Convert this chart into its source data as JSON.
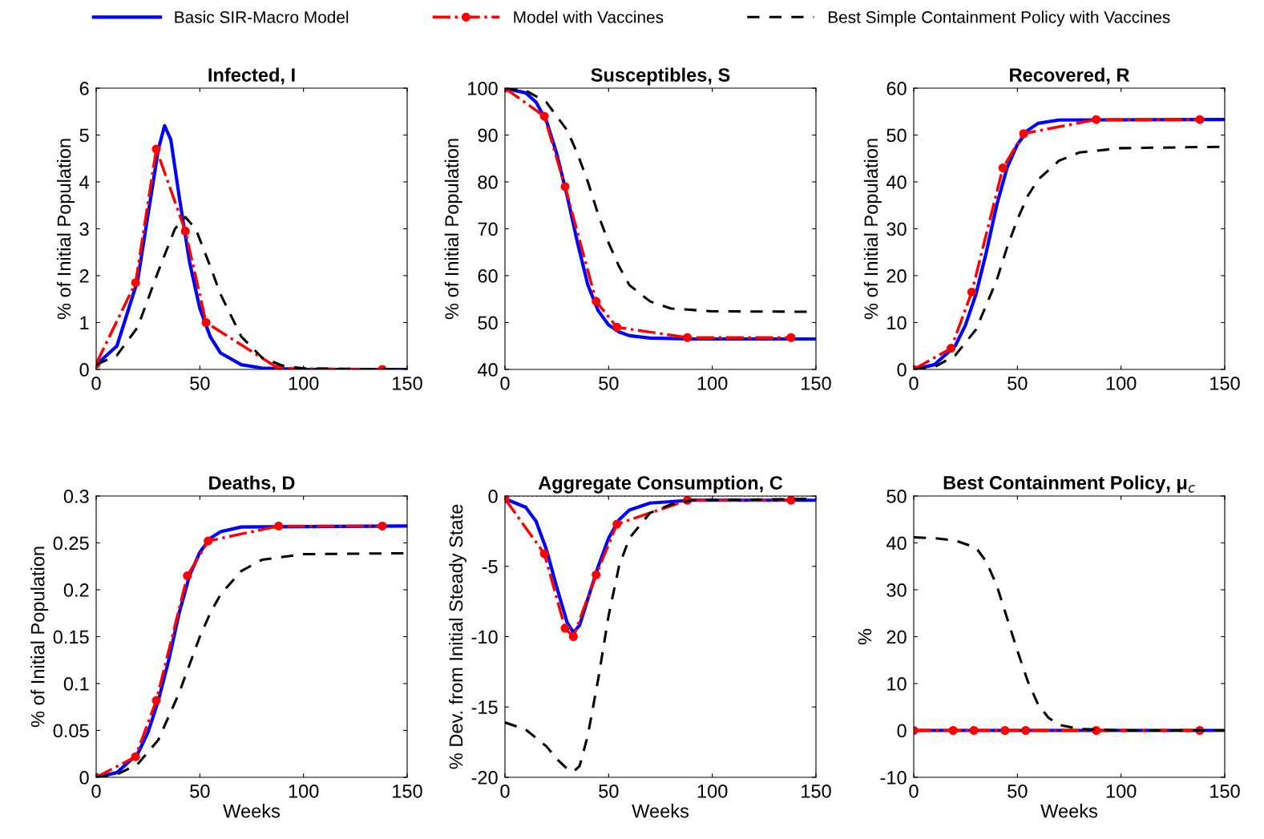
{
  "chart_data": [
    {
      "type": "line",
      "title": "Infected, I",
      "ylabel": "% of Initial Population",
      "xlim": [
        0,
        150
      ],
      "xticks": [
        0,
        50,
        100,
        150
      ],
      "ylim": [
        0,
        6
      ],
      "yticks": [
        0,
        1,
        2,
        3,
        4,
        5,
        6
      ],
      "legend": "top",
      "grid": false,
      "series": [
        {
          "name": "Basic SIR-Macro Model",
          "color": "#0000ff",
          "line_style": "solid",
          "marker": "none",
          "x": [
            0,
            10,
            20,
            25,
            30,
            33,
            36,
            40,
            45,
            50,
            55,
            60,
            70,
            80,
            100,
            150
          ],
          "values": [
            0.1,
            0.5,
            1.9,
            3.3,
            4.7,
            5.2,
            4.9,
            3.7,
            2.3,
            1.3,
            0.7,
            0.35,
            0.1,
            0.03,
            0,
            0
          ]
        },
        {
          "name": "Model with Vaccines",
          "color": "#ff0000",
          "line_style": "dashdot",
          "marker": "circle",
          "x": [
            0,
            19,
            29,
            43,
            53,
            88,
            138
          ],
          "values": [
            0.12,
            1.85,
            4.7,
            2.95,
            1.0,
            0.02,
            0
          ]
        },
        {
          "name": "Best Simple Containment Policy with Vaccines",
          "color": "#000000",
          "line_style": "dashed",
          "marker": "none",
          "x": [
            0,
            10,
            20,
            30,
            38,
            43,
            48,
            55,
            60,
            70,
            80,
            90,
            100,
            150
          ],
          "values": [
            0.1,
            0.3,
            0.9,
            2.1,
            3.0,
            3.25,
            3.0,
            2.2,
            1.6,
            0.7,
            0.25,
            0.08,
            0.02,
            0
          ]
        }
      ]
    },
    {
      "type": "line",
      "title": "Susceptibles, S",
      "ylabel": "% of Initial Population",
      "xlim": [
        0,
        150
      ],
      "xticks": [
        0,
        50,
        100,
        150
      ],
      "ylim": [
        40,
        100
      ],
      "yticks": [
        40,
        50,
        60,
        70,
        80,
        90,
        100
      ],
      "series": [
        {
          "color": "#0000ff",
          "line_style": "solid",
          "marker": "none",
          "x": [
            0,
            10,
            15,
            20,
            25,
            30,
            35,
            40,
            45,
            50,
            55,
            60,
            70,
            90,
            150
          ],
          "values": [
            100,
            99,
            97,
            93,
            86,
            77,
            67,
            58,
            52.5,
            49.5,
            48,
            47.2,
            46.7,
            46.5,
            46.5
          ]
        },
        {
          "color": "#ff0000",
          "line_style": "dashdot",
          "marker": "circle",
          "x": [
            0,
            19,
            29,
            44,
            54,
            88,
            138
          ],
          "values": [
            100,
            94,
            79,
            54.5,
            49,
            46.8,
            46.8
          ]
        },
        {
          "color": "#000000",
          "line_style": "dashed",
          "marker": "none",
          "x": [
            0,
            10,
            20,
            30,
            35,
            40,
            45,
            50,
            55,
            60,
            70,
            80,
            100,
            150
          ],
          "values": [
            100,
            99.5,
            97,
            91,
            86,
            80,
            73,
            67,
            62,
            58,
            54.5,
            53,
            52.4,
            52.3
          ]
        }
      ]
    },
    {
      "type": "line",
      "title": "Recovered, R",
      "ylabel": "% of Initial Population",
      "xlim": [
        0,
        150
      ],
      "xticks": [
        0,
        50,
        100,
        150
      ],
      "ylim": [
        0,
        60
      ],
      "yticks": [
        0,
        10,
        20,
        30,
        40,
        50,
        60
      ],
      "series": [
        {
          "color": "#0000ff",
          "line_style": "solid",
          "marker": "none",
          "x": [
            0,
            10,
            20,
            25,
            30,
            35,
            40,
            45,
            50,
            55,
            60,
            70,
            150
          ],
          "values": [
            0,
            1,
            5,
            9.5,
            16,
            25,
            35,
            43,
            48,
            51,
            52.5,
            53.2,
            53.3
          ]
        },
        {
          "color": "#ff0000",
          "line_style": "dashdot",
          "marker": "circle",
          "x": [
            0,
            18,
            28,
            43,
            53,
            88,
            138
          ],
          "values": [
            0,
            4.5,
            16.5,
            43,
            50.3,
            53.3,
            53.3
          ]
        },
        {
          "color": "#000000",
          "line_style": "dashed",
          "marker": "none",
          "x": [
            0,
            10,
            20,
            30,
            40,
            45,
            50,
            55,
            60,
            70,
            80,
            100,
            150
          ],
          "values": [
            0,
            0.5,
            3,
            8.5,
            19,
            26,
            32,
            37,
            40.5,
            44.5,
            46.3,
            47.2,
            47.5
          ]
        }
      ]
    },
    {
      "type": "line",
      "title": "Deaths, D",
      "ylabel": "% of Initial Population",
      "xlabel": "Weeks",
      "xlim": [
        0,
        150
      ],
      "xticks": [
        0,
        50,
        100,
        150
      ],
      "ylim": [
        0,
        0.3
      ],
      "yticks": [
        0,
        0.05,
        0.1,
        0.15,
        0.2,
        0.25,
        0.3
      ],
      "series": [
        {
          "color": "#0000ff",
          "line_style": "solid",
          "marker": "none",
          "x": [
            0,
            10,
            20,
            25,
            30,
            35,
            40,
            45,
            50,
            55,
            60,
            70,
            150
          ],
          "values": [
            0,
            0.005,
            0.025,
            0.048,
            0.082,
            0.125,
            0.175,
            0.215,
            0.24,
            0.255,
            0.262,
            0.267,
            0.268
          ]
        },
        {
          "color": "#ff0000",
          "line_style": "dashdot",
          "marker": "circle",
          "x": [
            0,
            19,
            29,
            44,
            54,
            88,
            138
          ],
          "values": [
            0,
            0.022,
            0.082,
            0.215,
            0.252,
            0.268,
            0.268
          ]
        },
        {
          "color": "#000000",
          "line_style": "dashed",
          "marker": "none",
          "x": [
            0,
            10,
            20,
            30,
            40,
            45,
            50,
            55,
            60,
            70,
            80,
            100,
            150
          ],
          "values": [
            0,
            0.003,
            0.014,
            0.04,
            0.09,
            0.12,
            0.15,
            0.175,
            0.195,
            0.22,
            0.232,
            0.238,
            0.239
          ]
        }
      ]
    },
    {
      "type": "line",
      "title": "Aggregate Consumption, C",
      "ylabel": "% Dev. from Initial Steady State",
      "xlabel": "Weeks",
      "xlim": [
        0,
        150
      ],
      "xticks": [
        0,
        50,
        100,
        150
      ],
      "ylim": [
        -20,
        0
      ],
      "yticks": [
        -20,
        -15,
        -10,
        -5,
        0
      ],
      "ref_lines": [
        {
          "axis": "y",
          "value": 0,
          "color": "#ff00ff",
          "line_style": "dotted"
        }
      ],
      "series": [
        {
          "color": "#0000ff",
          "line_style": "solid",
          "marker": "none",
          "x": [
            0,
            10,
            15,
            20,
            25,
            30,
            33,
            36,
            40,
            45,
            50,
            55,
            60,
            70,
            90,
            150
          ],
          "values": [
            -0.2,
            -0.8,
            -1.8,
            -3.8,
            -6.5,
            -9,
            -9.7,
            -9.2,
            -7.3,
            -5,
            -3,
            -1.7,
            -1,
            -0.5,
            -0.3,
            -0.3
          ]
        },
        {
          "color": "#ff0000",
          "line_style": "dashdot",
          "marker": "circle",
          "x": [
            0,
            19,
            29,
            33,
            44,
            54,
            88,
            138
          ],
          "values": [
            -0.2,
            -4.1,
            -9.4,
            -10,
            -5.6,
            -2.0,
            -0.3,
            -0.3
          ]
        },
        {
          "color": "#000000",
          "line_style": "dashed",
          "marker": "none",
          "x": [
            0,
            10,
            20,
            25,
            30,
            33,
            36,
            40,
            45,
            50,
            55,
            60,
            70,
            80,
            90,
            150
          ],
          "values": [
            -16.1,
            -16.6,
            -17.8,
            -18.7,
            -19.4,
            -19.6,
            -19.2,
            -17,
            -13,
            -8.5,
            -5,
            -3,
            -1.2,
            -0.6,
            -0.3,
            -0.2
          ]
        }
      ]
    },
    {
      "type": "line",
      "title": "Best Containment Policy, μ$_{c}$",
      "ylabel": "%",
      "xlabel": "Weeks",
      "xlim": [
        0,
        150
      ],
      "xticks": [
        0,
        50,
        100,
        150
      ],
      "ylim": [
        -10,
        50
      ],
      "yticks": [
        -10,
        0,
        10,
        20,
        30,
        40,
        50
      ],
      "series": [
        {
          "color": "#0000ff",
          "line_style": "solid",
          "marker": "none",
          "x": [
            0,
            150
          ],
          "values": [
            0,
            0
          ]
        },
        {
          "color": "#ff0000",
          "line_style": "dashdot",
          "marker": "circle",
          "x": [
            0,
            19,
            29,
            44,
            54,
            88,
            138
          ],
          "values": [
            0,
            0,
            0,
            0,
            0,
            0,
            0
          ]
        },
        {
          "color": "#000000",
          "line_style": "dashed",
          "marker": "none",
          "x": [
            0,
            10,
            20,
            30,
            35,
            40,
            45,
            50,
            55,
            60,
            65,
            70,
            80,
            100,
            150
          ],
          "values": [
            41.2,
            41,
            40.5,
            39,
            36,
            31,
            24,
            17,
            10.5,
            5.5,
            2.7,
            1.2,
            0.3,
            0,
            0
          ]
        }
      ]
    }
  ]
}
